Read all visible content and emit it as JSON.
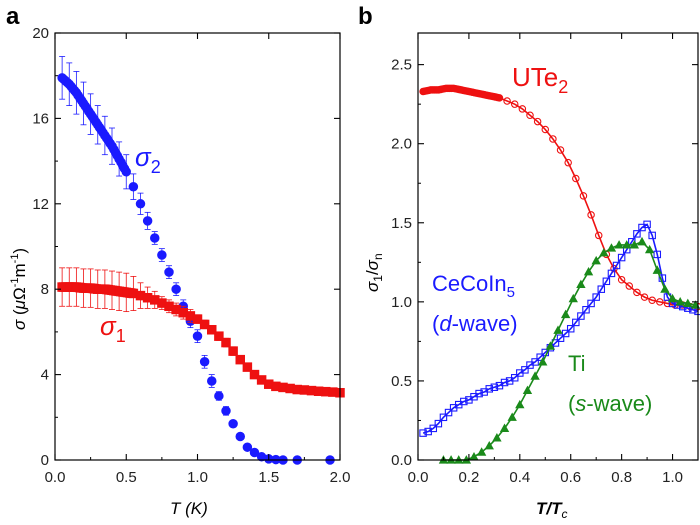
{
  "chart_data": [
    {
      "panel": "a",
      "type": "scatter",
      "xlabel": "T (K)",
      "ylabel": "σ (μΩ⁻¹m⁻¹)",
      "xlim": [
        0,
        2.0
      ],
      "ylim": [
        0,
        20
      ],
      "xticks": [
        "0.0",
        "0.5",
        "1.0",
        "1.5",
        "2.0"
      ],
      "yticks": [
        "0",
        "4",
        "8",
        "12",
        "16",
        "20"
      ],
      "series": [
        {
          "name": "σ2",
          "label_main": "σ",
          "label_sub": "2",
          "color": "#1a1aff",
          "marker": "circle",
          "dense_until": 0.5,
          "x": [
            0.05,
            0.1,
            0.15,
            0.2,
            0.25,
            0.3,
            0.35,
            0.4,
            0.45,
            0.5,
            0.55,
            0.6,
            0.65,
            0.7,
            0.75,
            0.8,
            0.85,
            0.9,
            0.95,
            1.0,
            1.05,
            1.1,
            1.15,
            1.2,
            1.25,
            1.3,
            1.35,
            1.4,
            1.45,
            1.5,
            1.55,
            1.6,
            1.7,
            1.93
          ],
          "y": [
            17.9,
            17.6,
            17.2,
            16.7,
            16.2,
            15.7,
            15.2,
            14.7,
            14.1,
            13.5,
            12.8,
            12.0,
            11.2,
            10.4,
            9.6,
            8.8,
            8.0,
            7.2,
            6.5,
            5.8,
            4.6,
            3.7,
            3.0,
            2.3,
            1.7,
            1.1,
            0.6,
            0.35,
            0.15,
            0.05,
            0.02,
            0.0,
            0.0,
            0.0
          ],
          "err": [
            1.0,
            1.0,
            1.0,
            1.0,
            0.95,
            0.9,
            0.9,
            0.85,
            0.8,
            0.8,
            0.6,
            0.5,
            0.4,
            0.3,
            0.3,
            0.3,
            0.3,
            0.3,
            0.3,
            0.3,
            0.3,
            0.3,
            0.2,
            0.2,
            0.1,
            0.1,
            0.1,
            0.1,
            0.1,
            0.1,
            0.1,
            0,
            0,
            0
          ]
        },
        {
          "name": "σ1",
          "label_main": "σ",
          "label_sub": "1",
          "color": "#ee1111",
          "marker": "square",
          "dense_until": 0.55,
          "x": [
            0.05,
            0.1,
            0.15,
            0.2,
            0.25,
            0.3,
            0.35,
            0.4,
            0.45,
            0.5,
            0.55,
            0.6,
            0.65,
            0.7,
            0.75,
            0.8,
            0.85,
            0.9,
            0.95,
            1.0,
            1.05,
            1.1,
            1.15,
            1.2,
            1.25,
            1.3,
            1.35,
            1.4,
            1.45,
            1.5,
            1.55,
            1.6,
            1.65,
            1.7,
            1.75,
            1.8,
            1.85,
            1.9,
            1.95,
            2.0
          ],
          "y": [
            8.1,
            8.1,
            8.1,
            8.05,
            8.05,
            8.0,
            8.0,
            7.95,
            7.9,
            7.85,
            7.8,
            7.7,
            7.6,
            7.5,
            7.35,
            7.2,
            7.05,
            6.9,
            6.75,
            6.6,
            6.35,
            6.1,
            5.8,
            5.5,
            5.1,
            4.7,
            4.35,
            4.0,
            3.75,
            3.55,
            3.45,
            3.4,
            3.35,
            3.3,
            3.28,
            3.25,
            3.22,
            3.2,
            3.18,
            3.15
          ],
          "err": [
            0.9,
            0.9,
            0.9,
            0.9,
            0.9,
            0.9,
            0.9,
            0.9,
            0.9,
            0.9,
            0.8,
            0.6,
            0.5,
            0.4,
            0.3,
            0.3,
            0.3,
            0.3,
            0.3,
            0.2,
            0.2,
            0.2,
            0.2,
            0.2,
            0.2,
            0.15,
            0.15,
            0.1,
            0.1,
            0.1,
            0.1,
            0.1,
            0.1,
            0.1,
            0.1,
            0.1,
            0.1,
            0.1,
            0.1,
            0.1
          ]
        }
      ]
    },
    {
      "panel": "b",
      "type": "line",
      "xlabel": "T/Tc",
      "ylabel": "σ1/σn",
      "xlim": [
        0,
        1.1
      ],
      "ylim": [
        0,
        2.7
      ],
      "xticks": [
        "0.0",
        "0.2",
        "0.4",
        "0.6",
        "0.8",
        "1.0"
      ],
      "yticks": [
        "0.0",
        "0.5",
        "1.0",
        "1.5",
        "2.0",
        "2.5"
      ],
      "series": [
        {
          "name": "UTe2",
          "label_main": "UTe",
          "label_sub": "2",
          "color": "#ee1111",
          "marker": "circle",
          "dense_until": 0.32,
          "x": [
            0.02,
            0.05,
            0.08,
            0.11,
            0.14,
            0.17,
            0.2,
            0.23,
            0.26,
            0.29,
            0.32,
            0.35,
            0.38,
            0.41,
            0.44,
            0.47,
            0.5,
            0.53,
            0.56,
            0.59,
            0.62,
            0.65,
            0.68,
            0.71,
            0.74,
            0.77,
            0.8,
            0.83,
            0.86,
            0.89,
            0.92,
            0.95,
            0.98,
            1.01,
            1.04,
            1.07,
            1.1
          ],
          "y": [
            2.33,
            2.34,
            2.34,
            2.35,
            2.35,
            2.34,
            2.33,
            2.32,
            2.31,
            2.3,
            2.29,
            2.27,
            2.25,
            2.22,
            2.18,
            2.14,
            2.09,
            2.03,
            1.96,
            1.88,
            1.78,
            1.67,
            1.55,
            1.42,
            1.3,
            1.21,
            1.14,
            1.1,
            1.06,
            1.03,
            1.01,
            1.0,
            0.99,
            0.98,
            0.98,
            0.97,
            0.97
          ]
        },
        {
          "name": "CeCoIn5",
          "color": "#1a1aff",
          "marker": "square",
          "x": [
            0.02,
            0.04,
            0.06,
            0.08,
            0.1,
            0.12,
            0.14,
            0.16,
            0.18,
            0.2,
            0.22,
            0.24,
            0.26,
            0.28,
            0.3,
            0.32,
            0.34,
            0.36,
            0.38,
            0.4,
            0.42,
            0.44,
            0.46,
            0.48,
            0.5,
            0.52,
            0.54,
            0.56,
            0.58,
            0.6,
            0.62,
            0.64,
            0.66,
            0.68,
            0.7,
            0.72,
            0.74,
            0.76,
            0.78,
            0.8,
            0.82,
            0.84,
            0.86,
            0.88,
            0.9,
            0.92,
            0.94,
            0.96,
            0.98,
            1.0,
            1.02,
            1.04,
            1.06,
            1.08,
            1.1
          ],
          "y": [
            0.17,
            0.18,
            0.2,
            0.23,
            0.27,
            0.3,
            0.33,
            0.35,
            0.37,
            0.38,
            0.4,
            0.42,
            0.43,
            0.45,
            0.46,
            0.47,
            0.49,
            0.5,
            0.52,
            0.55,
            0.57,
            0.6,
            0.62,
            0.65,
            0.68,
            0.71,
            0.74,
            0.77,
            0.8,
            0.83,
            0.87,
            0.91,
            0.95,
            0.99,
            1.03,
            1.08,
            1.13,
            1.18,
            1.23,
            1.28,
            1.33,
            1.38,
            1.43,
            1.47,
            1.49,
            1.42,
            1.3,
            1.15,
            1.03,
            0.99,
            0.98,
            0.97,
            0.96,
            0.95,
            0.94
          ]
        },
        {
          "name": "Ti",
          "color": "#1a8a1a",
          "marker": "triangle",
          "x": [
            0.1,
            0.13,
            0.16,
            0.19,
            0.22,
            0.25,
            0.28,
            0.31,
            0.34,
            0.37,
            0.4,
            0.43,
            0.46,
            0.49,
            0.52,
            0.55,
            0.58,
            0.61,
            0.64,
            0.67,
            0.7,
            0.73,
            0.76,
            0.79,
            0.82,
            0.85,
            0.88,
            0.91,
            0.94,
            0.97,
            1.0,
            1.03,
            1.06,
            1.09
          ],
          "y": [
            0.0,
            0.0,
            0.0,
            0.0,
            0.02,
            0.05,
            0.09,
            0.14,
            0.2,
            0.27,
            0.35,
            0.44,
            0.53,
            0.62,
            0.72,
            0.82,
            0.92,
            1.02,
            1.11,
            1.19,
            1.26,
            1.31,
            1.34,
            1.36,
            1.36,
            1.36,
            1.38,
            1.33,
            1.2,
            1.08,
            1.02,
            1.0,
            0.99,
            0.98
          ]
        }
      ]
    }
  ],
  "annotations": {
    "panel_a_letter": "a",
    "panel_b_letter": "b",
    "a_ylabel_sigma": "σ",
    "a_ylabel_open": " (",
    "a_ylabel_mu": "μ",
    "a_ylabel_omega": "Ω",
    "a_ylabel_exp1": "-1",
    "a_ylabel_m": "m",
    "a_ylabel_exp2": "-1",
    "a_ylabel_close": ")",
    "a_xlabel_T": "T",
    "a_xlabel_unit": " (K)",
    "b_xlabel_T": "T",
    "b_xlabel_slash": "/",
    "b_xlabel_Tc": "T",
    "b_xlabel_c": "c",
    "b_ylabel_s1": "σ",
    "b_ylabel_1": "1",
    "b_ylabel_slash": "/",
    "b_ylabel_sn": "σ",
    "b_ylabel_n": "n",
    "cecoin_main": "CeCoIn",
    "cecoin_sub": "5",
    "cecoin_paren_open": "(",
    "cecoin_d": "d",
    "cecoin_rest": "-wave)",
    "ti_label": "Ti",
    "ti_paren_open": "(",
    "ti_s": "s",
    "ti_rest": "-wave)"
  }
}
